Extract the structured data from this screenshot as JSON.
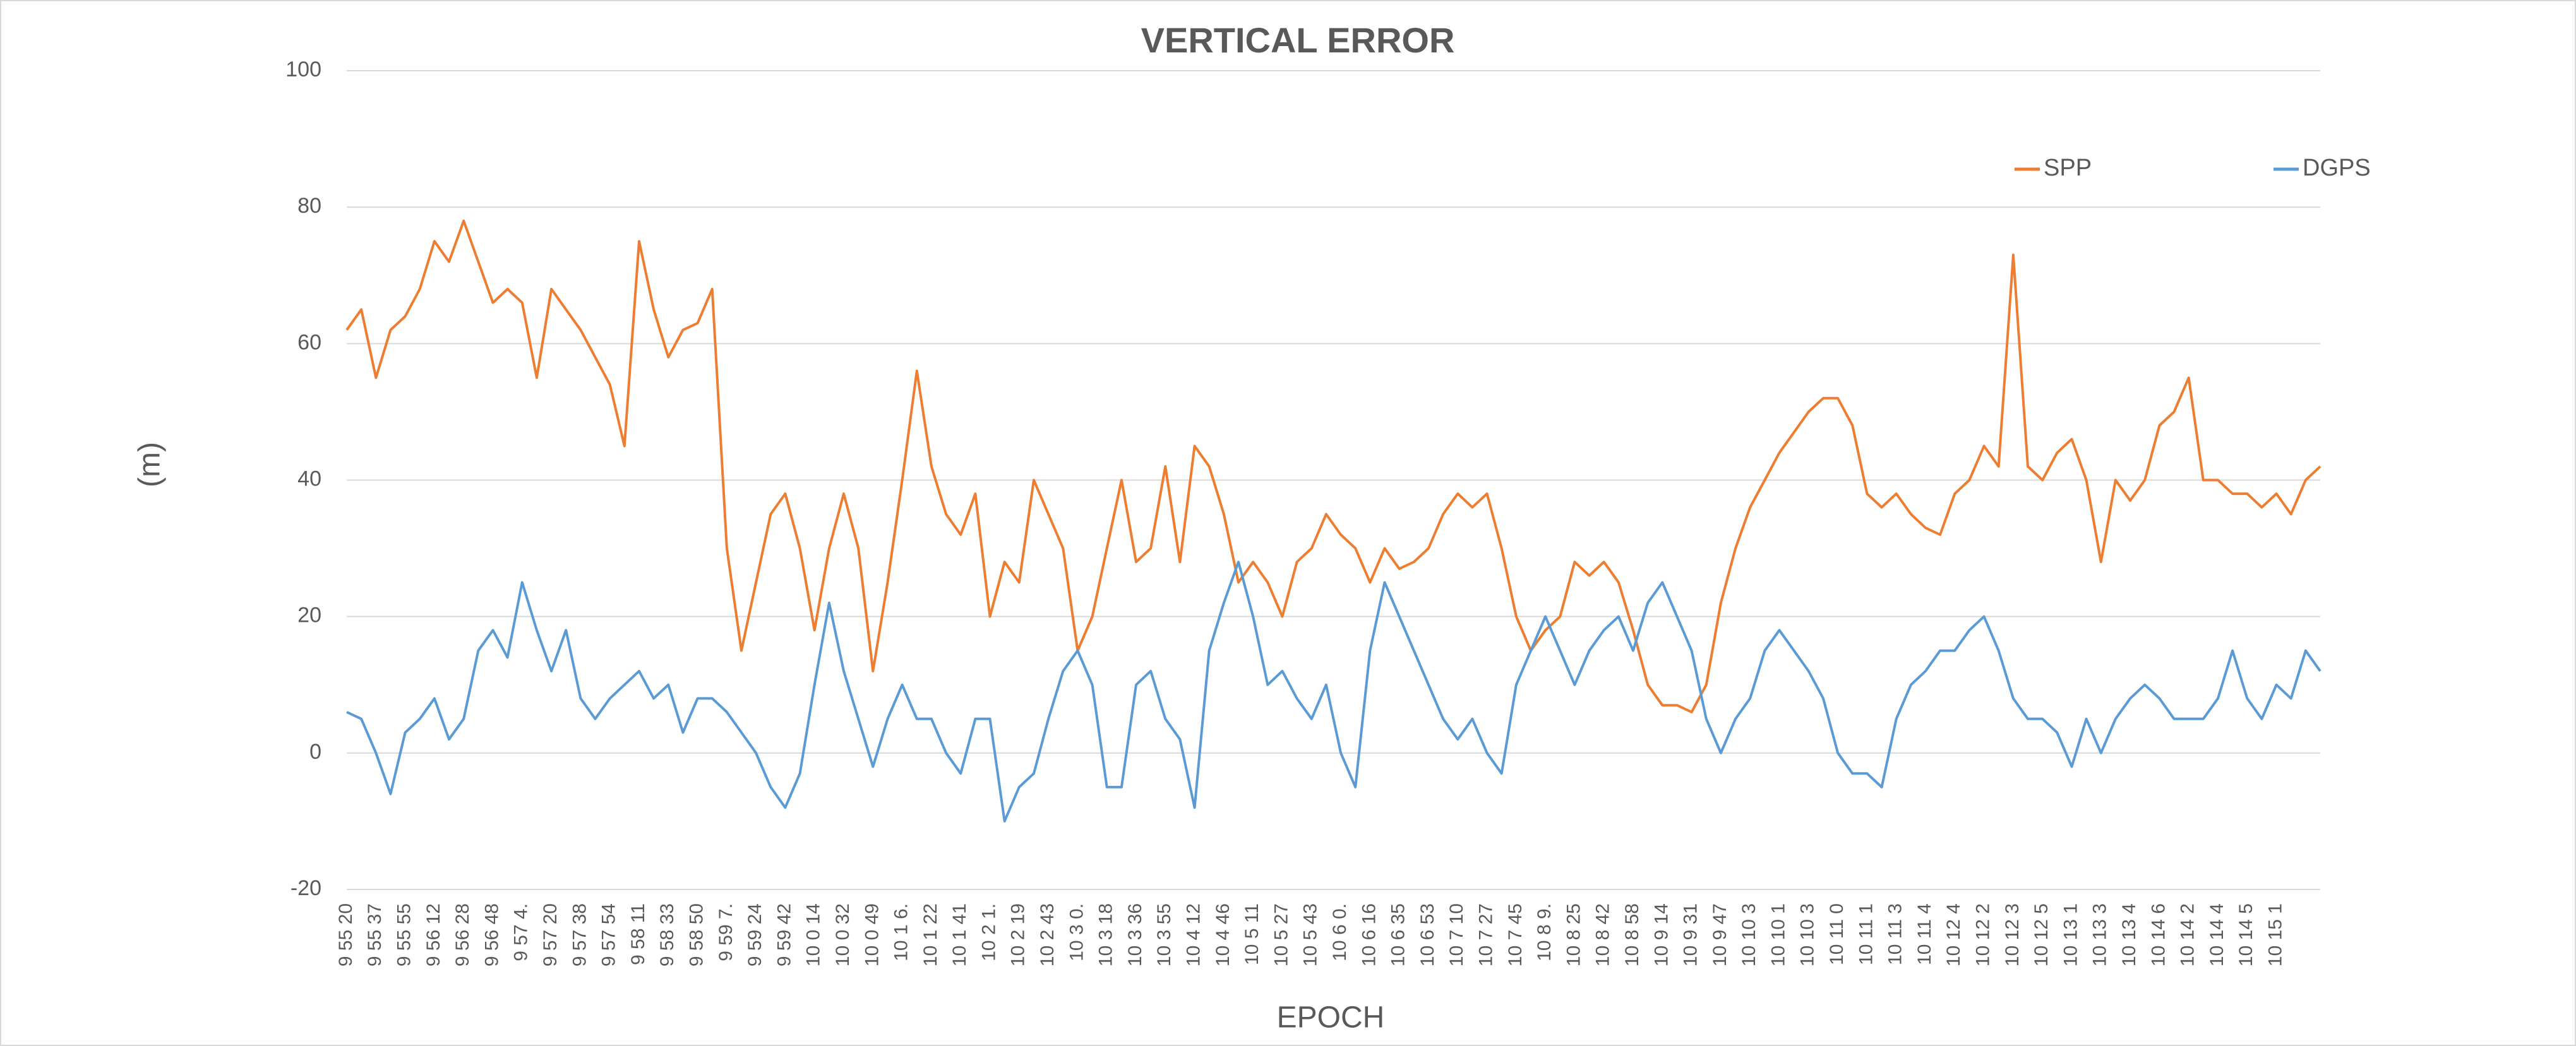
{
  "chart_data": {
    "type": "line",
    "title": "VERTICAL ERROR",
    "x_label": "EPOCH",
    "y_label": "(m)",
    "categories": [
      "9 55 20",
      null,
      "9 55 37",
      null,
      "9 55 55",
      null,
      "9 56 12",
      null,
      "9 56 28",
      null,
      "9 56 48",
      null,
      "9 57 4.",
      null,
      "9 57 20",
      null,
      "9 57 38",
      null,
      "9 57 54",
      null,
      "9 58 11",
      null,
      "9 58 33",
      null,
      "9 58 50",
      null,
      "9 59 7.",
      null,
      "9 59 24",
      null,
      "9 59 42",
      null,
      "10 0 14",
      null,
      "10 0 32",
      null,
      "10 0 49",
      null,
      "10 1 6.",
      null,
      "10 1 22",
      null,
      "10 1 41",
      null,
      "10 2 1.",
      null,
      "10 2 19",
      null,
      "10 2 43",
      null,
      "10 3 0.",
      null,
      "10 3 18",
      null,
      "10 3 36",
      null,
      "10 3 55",
      null,
      "10 4 12",
      null,
      "10 4 46",
      null,
      "10 5 11",
      null,
      "10 5 27",
      null,
      "10 5 43",
      null,
      "10 6 0.",
      null,
      "10 6 16",
      null,
      "10 6 35",
      null,
      "10 6 53",
      null,
      "10 7 10",
      null,
      "10 7 27",
      null,
      "10 7 45",
      null,
      "10 8 9.",
      null,
      "10 8 25",
      null,
      "10 8 42",
      null,
      "10 8 58",
      null,
      "10 9 14",
      null,
      "10 9 31",
      null,
      "10 9 47",
      null,
      "10 10 3",
      null,
      "10 10 1",
      null,
      "10 10 3",
      null,
      "10 11 0",
      null,
      "10 11 1",
      null,
      "10 11 3",
      null,
      "10 11 4",
      null,
      "10 12 4",
      null,
      "10 12 2",
      null,
      "10 12 3",
      null,
      "10 12 5",
      null,
      "10 13 1",
      null,
      "10 13 3",
      null,
      "10 13 4",
      null,
      "10 14 6",
      null,
      "10 14 2",
      null,
      "10 14 4",
      null,
      "10 14 5",
      null,
      "10 15 1",
      null,
      null,
      null
    ],
    "series": [
      {
        "name": "SPP",
        "color": "#ed7d31",
        "values": [
          62,
          65,
          55,
          62,
          64,
          68,
          75,
          72,
          78,
          72,
          66,
          68,
          66,
          55,
          68,
          65,
          62,
          58,
          54,
          45,
          75,
          65,
          58,
          62,
          63,
          68,
          30,
          15,
          25,
          35,
          38,
          30,
          18,
          30,
          38,
          30,
          12,
          25,
          40,
          56,
          42,
          35,
          32,
          38,
          20,
          28,
          25,
          40,
          35,
          30,
          15,
          20,
          30,
          40,
          28,
          30,
          42,
          28,
          45,
          42,
          35,
          25,
          28,
          25,
          20,
          28,
          30,
          35,
          32,
          30,
          25,
          30,
          27,
          28,
          30,
          35,
          38,
          36,
          38,
          30,
          20,
          15,
          18,
          20,
          28,
          26,
          28,
          25,
          18,
          10,
          7,
          7,
          6,
          10,
          22,
          30,
          36,
          40,
          44,
          47,
          50,
          52,
          52,
          48,
          38,
          36,
          38,
          35,
          33,
          32,
          38,
          40,
          45,
          42,
          73,
          42,
          40,
          44,
          46,
          40,
          28,
          40,
          37,
          40,
          48,
          50,
          55,
          40,
          40,
          38,
          38,
          36,
          38,
          35,
          40,
          42
        ]
      },
      {
        "name": "DGPS",
        "color": "#5b9bd5",
        "values": [
          6,
          5,
          0,
          -6,
          3,
          5,
          8,
          2,
          5,
          15,
          18,
          14,
          25,
          18,
          12,
          18,
          8,
          5,
          8,
          10,
          12,
          8,
          10,
          3,
          8,
          8,
          6,
          3,
          0,
          -5,
          -8,
          -3,
          10,
          22,
          12,
          5,
          -2,
          5,
          10,
          5,
          5,
          0,
          -3,
          5,
          5,
          -10,
          -5,
          -3,
          5,
          12,
          15,
          10,
          -5,
          -5,
          10,
          12,
          5,
          2,
          -8,
          15,
          22,
          28,
          20,
          10,
          12,
          8,
          5,
          10,
          0,
          -5,
          15,
          25,
          20,
          15,
          10,
          5,
          2,
          5,
          0,
          -3,
          10,
          15,
          20,
          15,
          10,
          15,
          18,
          20,
          15,
          22,
          25,
          20,
          15,
          5,
          0,
          5,
          8,
          15,
          18,
          15,
          12,
          8,
          0,
          -3,
          -3,
          -5,
          5,
          10,
          12,
          15,
          15,
          18,
          20,
          15,
          8,
          5,
          5,
          3,
          -2,
          5,
          0,
          5,
          8,
          10,
          8,
          5,
          5,
          5,
          8,
          15,
          8,
          5,
          10,
          8,
          15,
          12
        ]
      }
    ],
    "ylim": [
      -20,
      100
    ],
    "yticks": [
      -20,
      0,
      20,
      40,
      60,
      80,
      100
    ],
    "grid": true,
    "legend": "top-right"
  }
}
